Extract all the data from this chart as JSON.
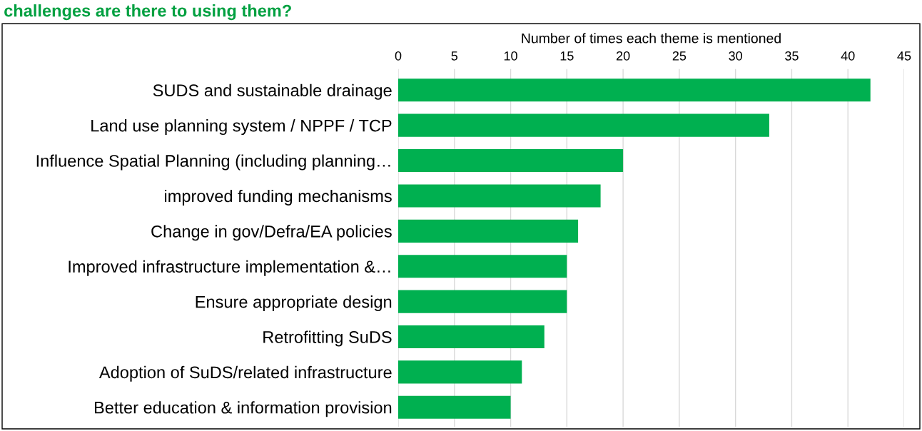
{
  "chart_data": {
    "type": "bar",
    "orientation": "horizontal",
    "title": "challenges are there to using them?",
    "xlabel": "Number of times each theme is mentioned",
    "categories": [
      "SUDS and sustainable drainage",
      "Land use planning system / NPPF / TCP",
      "Influence Spatial Planning (including planning…",
      "improved funding mechanisms",
      "Change in gov/Defra/EA policies",
      "Improved infrastructure implementation &…",
      "Ensure appropriate design",
      "Retrofitting SuDS",
      "Adoption of SuDS/related infrastructure",
      "Better education & information provision"
    ],
    "values": [
      42,
      33,
      20,
      18,
      16,
      15,
      15,
      13,
      11,
      10
    ],
    "color": "#00b050",
    "xlim": [
      0,
      45
    ],
    "xticks": [
      0,
      5,
      10,
      15,
      20,
      25,
      30,
      35,
      40,
      45
    ],
    "grid": "x",
    "legend": false
  }
}
